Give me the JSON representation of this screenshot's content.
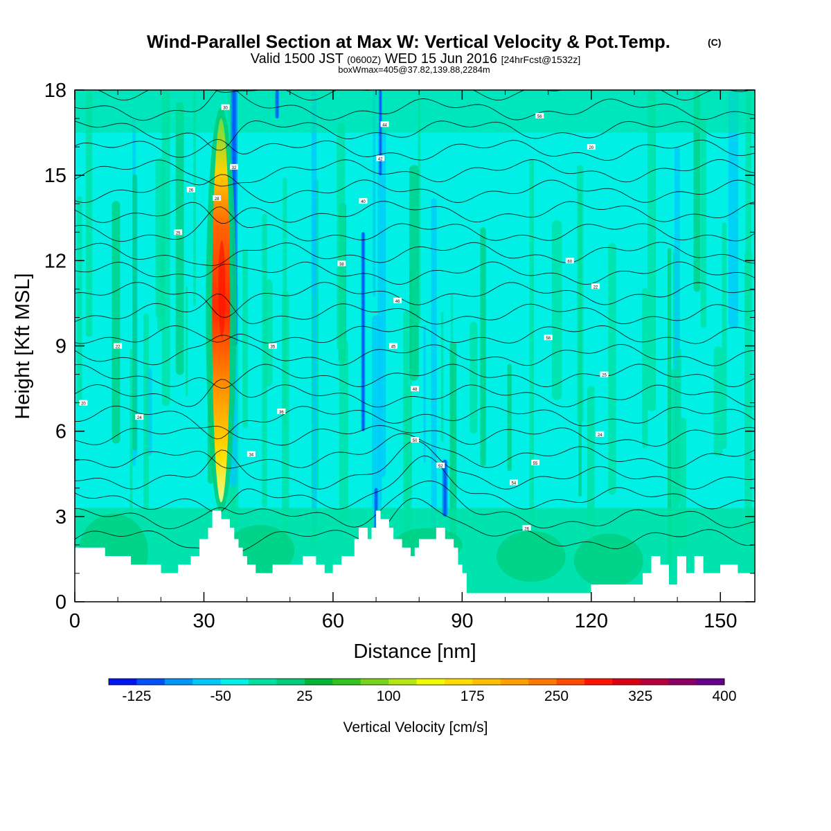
{
  "chart_data": {
    "type": "heatmap",
    "title": "Wind-Parallel Section at Max W: Vertical Velocity & Pot.Temp.",
    "title_mark": "(C)",
    "subtitle": {
      "prefix": "Valid 1500 JST",
      "utc": "(0600Z)",
      "date": "WED 15 Jun 2016",
      "forecast": "[24hrFcst@1532z]"
    },
    "box_info": "boxWmax=405@37.82,139.88,2284m",
    "xlabel": "Distance [nm]",
    "ylabel": "Height [Kft MSL]",
    "xlim": [
      0,
      158
    ],
    "ylim": [
      0,
      18
    ],
    "x_ticks": [
      "0",
      "30",
      "60",
      "90",
      "120",
      "150"
    ],
    "y_ticks": [
      "0",
      "3",
      "6",
      "9",
      "12",
      "15",
      "18"
    ],
    "colorbar": {
      "label": "Vertical Velocity [cm/s]",
      "tick_labels": [
        "-125",
        "-50",
        "25",
        "100",
        "175",
        "250",
        "325",
        "400"
      ],
      "colors": [
        "#0016f0",
        "#0050f5",
        "#0096f5",
        "#00c8fa",
        "#00f0e6",
        "#00e0a0",
        "#00cd7a",
        "#00b437",
        "#32c31e",
        "#78d21e",
        "#b4e614",
        "#f0fa00",
        "#ffdc00",
        "#ffbe00",
        "#ffa000",
        "#ff7800",
        "#ff4b00",
        "#ff1400",
        "#dc0014",
        "#b4003c",
        "#8c0064",
        "#64008c"
      ]
    },
    "theta_contour_labels": [
      "20",
      "22",
      "24",
      "25",
      "26",
      "28",
      "30",
      "32",
      "34",
      "35",
      "36",
      "38",
      "40",
      "42",
      "44",
      "45",
      "46",
      "48",
      "50",
      "52",
      "54",
      "55",
      "56",
      "58",
      "60"
    ],
    "max_vertical_velocity": 405,
    "terrain": {
      "x": [
        0,
        7,
        7,
        13,
        13,
        20,
        20,
        24,
        24,
        27,
        27,
        29,
        29,
        31,
        31,
        32,
        32,
        34,
        34,
        36,
        36,
        37,
        37,
        38,
        38,
        39,
        39,
        40,
        40,
        42,
        42,
        46,
        46,
        53,
        53,
        56,
        56,
        58,
        58,
        60,
        60,
        62,
        62,
        65,
        65,
        66,
        66,
        68,
        68,
        69,
        69,
        70,
        70,
        71,
        71,
        73,
        73,
        74,
        74,
        76,
        76,
        78,
        78,
        79,
        79,
        80,
        80,
        84,
        84,
        86,
        86,
        88,
        88,
        89,
        89,
        90,
        90,
        91,
        91,
        94,
        94,
        100,
        100,
        120,
        120,
        126,
        126,
        132,
        132,
        134,
        134,
        136,
        136,
        138,
        138,
        140,
        140,
        142,
        142,
        144,
        144,
        146,
        146,
        150,
        150,
        154,
        154,
        158
      ],
      "height": [
        1.9,
        1.9,
        1.6,
        1.6,
        1.3,
        1.3,
        1.0,
        1.0,
        1.3,
        1.3,
        1.6,
        1.6,
        2.2,
        2.2,
        2.6,
        2.6,
        3.2,
        3.2,
        2.9,
        2.9,
        2.6,
        2.6,
        2.2,
        2.2,
        1.9,
        1.9,
        1.6,
        1.6,
        1.3,
        1.3,
        1.0,
        1.0,
        1.3,
        1.3,
        1.6,
        1.6,
        1.3,
        1.3,
        1.0,
        1.0,
        1.3,
        1.3,
        1.6,
        1.6,
        2.2,
        2.2,
        2.6,
        2.6,
        2.2,
        2.2,
        2.6,
        2.6,
        3.2,
        3.2,
        2.9,
        2.9,
        2.6,
        2.6,
        2.2,
        2.2,
        1.9,
        1.9,
        1.6,
        1.6,
        1.9,
        1.9,
        2.2,
        2.2,
        2.6,
        2.6,
        2.2,
        2.2,
        1.9,
        1.9,
        1.3,
        1.3,
        1.0,
        1.0,
        0.3,
        0.3,
        0.3,
        0.3,
        0.3,
        0.3,
        0.6,
        0.6,
        0.6,
        0.6,
        1.0,
        1.0,
        1.6,
        1.6,
        1.3,
        1.3,
        0.6,
        0.6,
        1.6,
        1.6,
        1.0,
        1.0,
        1.6,
        1.6,
        1.0,
        1.0,
        1.3,
        1.3,
        1.0,
        1.0
      ]
    },
    "updraft_core": {
      "x": 34,
      "ymin": 3.5,
      "ymax": 17,
      "peak": 405
    }
  }
}
